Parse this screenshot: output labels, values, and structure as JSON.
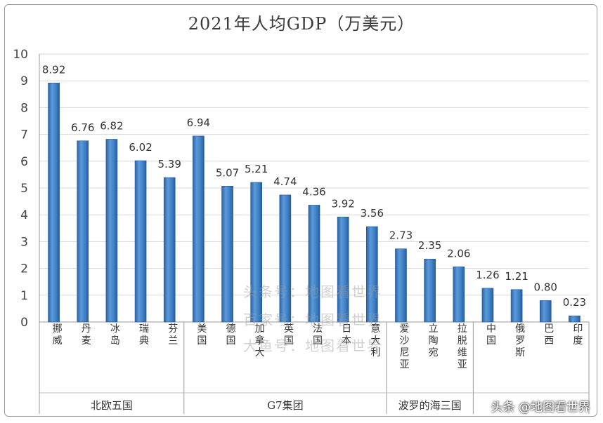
{
  "chart_data": {
    "type": "bar",
    "title": "2021年人均GDP（万美元）",
    "ylim": [
      0,
      10
    ],
    "yticks": [
      0,
      1,
      2,
      3,
      4,
      5,
      6,
      7,
      8,
      9,
      10
    ],
    "grid": true,
    "categories": [
      "挪威",
      "丹麦",
      "冰岛",
      "瑞典",
      "芬兰",
      "美国",
      "德国",
      "加拿大",
      "英国",
      "法国",
      "日本",
      "意大利",
      "爱沙尼亚",
      "立陶宛",
      "拉脱维亚",
      "中国",
      "俄罗斯",
      "巴西",
      "印度"
    ],
    "values": [
      8.92,
      6.76,
      6.82,
      6.02,
      5.39,
      6.94,
      5.07,
      5.21,
      4.74,
      4.36,
      3.92,
      3.56,
      2.73,
      2.35,
      2.06,
      1.26,
      1.21,
      0.8,
      0.23
    ],
    "value_labels": [
      "8.92",
      "6.76",
      "6.82",
      "6.02",
      "5.39",
      "6.94",
      "5.07",
      "5.21",
      "4.74",
      "4.36",
      "3.92",
      "3.56",
      "2.73",
      "2.35",
      "2.06",
      "1.26",
      "1.21",
      "0.80",
      "0.23"
    ],
    "groups": [
      {
        "label": "北欧五国",
        "count": 5
      },
      {
        "label": "G7集团",
        "count": 7
      },
      {
        "label": "波罗的海三国",
        "count": 3
      },
      {
        "label": "",
        "count": 4
      }
    ],
    "bar_color": "#3d7fc4"
  },
  "watermark": [
    "头条号：地图看世界",
    "百家号：地图看世界",
    "大鱼号：地图看世界"
  ],
  "source": "头条 @地图看世界"
}
